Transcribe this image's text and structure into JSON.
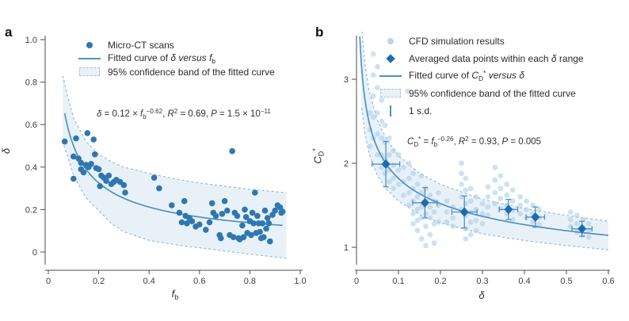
{
  "colors": {
    "point": "#2f77b0",
    "diamond": "#1b6cad",
    "line": "#4d92c3",
    "dashed": "#90b6d2",
    "band_fill": "#e9f1f8",
    "cfd_point": "#aecfe7",
    "error_bar": "#4d92c3",
    "axis": "#4d4d4d",
    "tick_text": "#3d3d3d",
    "text": "#333333",
    "background": "#ffffff"
  },
  "chart_data": [
    {
      "type": "scatter",
      "panel_label": "a",
      "xlabel_tokens": [
        {
          "t": "f",
          "s": "i"
        },
        {
          "t": "b",
          "s": "sub"
        }
      ],
      "ylabel_tokens": [
        {
          "t": "δ",
          "s": "i"
        }
      ],
      "xlim": [
        0,
        1.0
      ],
      "ylim": [
        0,
        1.0
      ],
      "grid": false,
      "legend_position": "top-inside",
      "xticks": [
        {
          "v": 0,
          "l": "0"
        },
        {
          "v": 0.2,
          "l": "0.2"
        },
        {
          "v": 0.4,
          "l": "0.4"
        },
        {
          "v": 0.6,
          "l": "0.6"
        },
        {
          "v": 0.8,
          "l": "0.8"
        },
        {
          "v": 1.0,
          "l": "1.0"
        }
      ],
      "yticks": [
        {
          "v": 0,
          "l": "0"
        },
        {
          "v": 0.2,
          "l": "0.2"
        },
        {
          "v": 0.4,
          "l": "0.4"
        },
        {
          "v": 0.6,
          "l": "0.6"
        },
        {
          "v": 0.8,
          "l": "0.8"
        },
        {
          "v": 1.0,
          "l": "1.0"
        }
      ],
      "legend": [
        {
          "marker": "dot",
          "tokens": [
            {
              "t": "Micro-CT scans"
            }
          ]
        },
        {
          "marker": "line",
          "tokens": [
            {
              "t": "Fitted curve of "
            },
            {
              "t": "δ",
              "s": "i"
            },
            {
              "t": " versus ",
              "s": "i"
            },
            {
              "t": "f",
              "s": "i"
            },
            {
              "t": "b",
              "s": "sub"
            }
          ]
        },
        {
          "marker": "band",
          "tokens": [
            {
              "t": "95% confidence band of the fitted curve"
            }
          ]
        }
      ],
      "equation_tokens": [
        {
          "t": "δ",
          "s": "i"
        },
        {
          "t": " = 0.12 × "
        },
        {
          "t": "f",
          "s": "i"
        },
        {
          "t": "b",
          "s": "sub"
        },
        {
          "t": "−0.62",
          "s": "sup"
        },
        {
          "t": ", "
        },
        {
          "t": "R",
          "s": "i"
        },
        {
          "t": "2",
          "s": "sup"
        },
        {
          "t": " = 0.69, "
        },
        {
          "t": "P",
          "s": "i"
        },
        {
          "t": " = 1.5 × 10"
        },
        {
          "t": "−11",
          "s": "sup"
        }
      ],
      "fit": {
        "coef": 0.12,
        "exponent": -0.62,
        "x_start": 0.065,
        "x_end": 0.93
      },
      "band": {
        "x": [
          0.057,
          0.08,
          0.1,
          0.15,
          0.2,
          0.25,
          0.3,
          0.4,
          0.5,
          0.6,
          0.7,
          0.8,
          0.945
        ],
        "upper": [
          0.83,
          0.72,
          0.63,
          0.52,
          0.46,
          0.425,
          0.4,
          0.37,
          0.345,
          0.325,
          0.31,
          0.295,
          0.28
        ],
        "lower": [
          0.52,
          0.44,
          0.36,
          0.255,
          0.195,
          0.135,
          0.095,
          0.055,
          0.035,
          0.02,
          0.005,
          -0.01,
          -0.03
        ]
      },
      "points": [
        [
          0.065,
          0.52
        ],
        [
          0.1,
          0.45
        ],
        [
          0.1,
          0.345
        ],
        [
          0.11,
          0.535
        ],
        [
          0.12,
          0.44
        ],
        [
          0.13,
          0.42
        ],
        [
          0.13,
          0.39
        ],
        [
          0.14,
          0.375
        ],
        [
          0.15,
          0.41
        ],
        [
          0.155,
          0.56
        ],
        [
          0.16,
          0.4
        ],
        [
          0.17,
          0.415
        ],
        [
          0.18,
          0.53
        ],
        [
          0.185,
          0.46
        ],
        [
          0.19,
          0.395
        ],
        [
          0.2,
          0.39
        ],
        [
          0.205,
          0.31
        ],
        [
          0.21,
          0.36
        ],
        [
          0.22,
          0.35
        ],
        [
          0.23,
          0.335
        ],
        [
          0.24,
          0.36
        ],
        [
          0.25,
          0.32
        ],
        [
          0.26,
          0.33
        ],
        [
          0.27,
          0.34
        ],
        [
          0.285,
          0.33
        ],
        [
          0.3,
          0.315
        ],
        [
          0.305,
          0.28
        ],
        [
          0.42,
          0.35
        ],
        [
          0.44,
          0.3
        ],
        [
          0.49,
          0.22
        ],
        [
          0.52,
          0.185
        ],
        [
          0.53,
          0.14
        ],
        [
          0.54,
          0.24
        ],
        [
          0.545,
          0.17
        ],
        [
          0.55,
          0.135
        ],
        [
          0.56,
          0.16
        ],
        [
          0.57,
          0.145
        ],
        [
          0.585,
          0.12
        ],
        [
          0.6,
          0.13
        ],
        [
          0.625,
          0.105
        ],
        [
          0.64,
          0.14
        ],
        [
          0.65,
          0.23
        ],
        [
          0.655,
          0.185
        ],
        [
          0.665,
          0.17
        ],
        [
          0.68,
          0.08
        ],
        [
          0.685,
          0.065
        ],
        [
          0.69,
          0.18
        ],
        [
          0.7,
          0.24
        ],
        [
          0.71,
          0.195
        ],
        [
          0.72,
          0.08
        ],
        [
          0.73,
          0.475
        ],
        [
          0.735,
          0.07
        ],
        [
          0.74,
          0.185
        ],
        [
          0.75,
          0.17
        ],
        [
          0.755,
          0.065
        ],
        [
          0.76,
          0.06
        ],
        [
          0.77,
          0.125
        ],
        [
          0.775,
          0.07
        ],
        [
          0.78,
          0.2
        ],
        [
          0.785,
          0.165
        ],
        [
          0.79,
          0.09
        ],
        [
          0.8,
          0.145
        ],
        [
          0.805,
          0.08
        ],
        [
          0.81,
          0.185
        ],
        [
          0.815,
          0.135
        ],
        [
          0.82,
          0.28
        ],
        [
          0.825,
          0.09
        ],
        [
          0.83,
          0.17
        ],
        [
          0.835,
          0.135
        ],
        [
          0.84,
          0.095
        ],
        [
          0.845,
          0.065
        ],
        [
          0.85,
          0.135
        ],
        [
          0.855,
          0.07
        ],
        [
          0.86,
          0.195
        ],
        [
          0.865,
          0.11
        ],
        [
          0.87,
          0.16
        ],
        [
          0.875,
          0.135
        ],
        [
          0.88,
          0.05
        ],
        [
          0.89,
          0.175
        ],
        [
          0.9,
          0.195
        ],
        [
          0.91,
          0.22
        ],
        [
          0.92,
          0.21
        ],
        [
          0.925,
          0.185
        ],
        [
          0.93,
          0.19
        ]
      ]
    },
    {
      "type": "scatter",
      "panel_label": "b",
      "xlabel_tokens": [
        {
          "t": "δ",
          "s": "i"
        }
      ],
      "ylabel_tokens": [
        {
          "t": "C",
          "s": "i"
        },
        {
          "t": "D",
          "s": "sub"
        },
        {
          "t": "*",
          "s": "sup"
        }
      ],
      "xlim": [
        0,
        0.6
      ],
      "ylim": [
        0.85,
        3.55
      ],
      "grid": false,
      "legend_position": "top-inside",
      "xticks": [
        {
          "v": 0,
          "l": "0"
        },
        {
          "v": 0.1,
          "l": "0.1"
        },
        {
          "v": 0.2,
          "l": "0.2"
        },
        {
          "v": 0.3,
          "l": "0.3"
        },
        {
          "v": 0.4,
          "l": "0.4"
        },
        {
          "v": 0.5,
          "l": "0.5"
        },
        {
          "v": 0.6,
          "l": "0.6"
        }
      ],
      "yticks": [
        {
          "v": 1,
          "l": "1"
        },
        {
          "v": 2,
          "l": "2"
        },
        {
          "v": 3,
          "l": "3"
        }
      ],
      "legend": [
        {
          "marker": "dot-light",
          "tokens": [
            {
              "t": "CFD simulation results"
            }
          ]
        },
        {
          "marker": "diamond",
          "tokens": [
            {
              "t": "Averaged data points within each "
            },
            {
              "t": "δ",
              "s": "i"
            },
            {
              "t": " range"
            }
          ]
        },
        {
          "marker": "line",
          "tokens": [
            {
              "t": "Fitted curve of "
            },
            {
              "t": "C",
              "s": "i"
            },
            {
              "t": "D",
              "s": "sub"
            },
            {
              "t": "*",
              "s": "sup"
            },
            {
              "t": " versus ",
              "s": "i"
            },
            {
              "t": "δ",
              "s": "i"
            }
          ]
        },
        {
          "marker": "band",
          "tokens": [
            {
              "t": "95% confidence band of the fitted curve"
            }
          ]
        },
        {
          "marker": "vbar",
          "tokens": [
            {
              "t": "1 s.d."
            }
          ]
        }
      ],
      "equation_tokens": [
        {
          "t": "C",
          "s": "i"
        },
        {
          "t": "D",
          "s": "sub"
        },
        {
          "t": "*",
          "s": "sup"
        },
        {
          "t": " = "
        },
        {
          "t": "f",
          "s": "i"
        },
        {
          "t": "b",
          "s": "sub"
        },
        {
          "t": "−0.26",
          "s": "sup"
        },
        {
          "t": ", "
        },
        {
          "t": "R",
          "s": "i"
        },
        {
          "t": "2",
          "s": "sup"
        },
        {
          "t": " = 0.93, "
        },
        {
          "t": "P",
          "s": "i"
        },
        {
          "t": " = 0.005"
        }
      ],
      "fit": {
        "coef": 1.0,
        "exponent": -0.26,
        "x_start": 0.008,
        "x_end": 0.6
      },
      "band": {
        "x": [
          0.012,
          0.02,
          0.03,
          0.05,
          0.07,
          0.1,
          0.15,
          0.2,
          0.3,
          0.4,
          0.5,
          0.6
        ],
        "upper": [
          3.63,
          3.18,
          2.86,
          2.51,
          2.3,
          2.09,
          1.88,
          1.75,
          1.57,
          1.46,
          1.38,
          1.31
        ],
        "lower": [
          2.68,
          2.35,
          2.12,
          1.85,
          1.7,
          1.55,
          1.39,
          1.29,
          1.16,
          1.08,
          1.02,
          0.97
        ]
      },
      "cfd_columns": [
        {
          "x": 0.032,
          "ys": [
            2.6,
            2.4,
            2.2
          ]
        },
        {
          "x": 0.04,
          "ys": [
            3.3,
            3.05,
            2.8,
            2.55,
            2.3
          ]
        },
        {
          "x": 0.05,
          "ys": [
            3.15,
            2.9,
            2.6,
            2.35,
            2.1
          ]
        },
        {
          "x": 0.06,
          "ys": [
            2.75,
            2.5,
            2.3,
            2.1,
            1.95
          ]
        },
        {
          "x": 0.068,
          "ys": [
            2.45,
            2.25,
            2.05,
            1.88
          ]
        },
        {
          "x": 0.078,
          "ys": [
            2.3,
            2.1,
            1.92,
            1.78
          ]
        },
        {
          "x": 0.088,
          "ys": [
            2.15,
            1.98,
            1.82,
            1.7
          ]
        },
        {
          "x": 0.1,
          "ys": [
            2.1,
            1.92,
            1.75
          ]
        },
        {
          "x": 0.112,
          "ys": [
            1.95,
            1.78,
            1.62
          ]
        },
        {
          "x": 0.122,
          "ys": [
            2.86
          ]
        },
        {
          "x": 0.125,
          "ys": [
            2.0,
            1.82,
            1.65,
            1.5
          ]
        },
        {
          "x": 0.135,
          "ys": [
            1.88,
            1.7,
            1.55,
            1.4,
            1.28
          ]
        },
        {
          "x": 0.145,
          "ys": [
            1.75,
            1.6,
            1.45,
            1.32,
            1.2
          ]
        },
        {
          "x": 0.155,
          "ys": [
            1.85,
            1.65,
            1.48,
            1.35,
            1.1
          ]
        },
        {
          "x": 0.165,
          "ys": [
            1.7,
            1.55,
            1.4,
            1.25,
            1.02
          ]
        },
        {
          "x": 0.175,
          "ys": [
            1.62,
            1.48,
            1.35,
            1.15
          ]
        },
        {
          "x": 0.185,
          "ys": [
            1.55,
            1.42,
            1.28,
            1.05
          ]
        },
        {
          "x": 0.195,
          "ys": [
            1.65,
            1.5,
            1.3
          ]
        },
        {
          "x": 0.215,
          "ys": [
            1.55,
            1.42,
            1.3
          ]
        },
        {
          "x": 0.23,
          "ys": [
            1.48,
            1.35,
            1.25
          ]
        },
        {
          "x": 0.25,
          "ys": [
            2.0,
            1.88,
            1.75,
            1.6,
            1.45
          ]
        },
        {
          "x": 0.26,
          "ys": [
            1.82,
            1.68,
            1.52,
            1.38,
            1.22,
            1.1
          ]
        },
        {
          "x": 0.272,
          "ys": [
            1.7,
            1.55,
            1.42,
            1.3,
            1.15
          ]
        },
        {
          "x": 0.285,
          "ys": [
            1.6,
            1.45,
            1.32,
            1.2
          ]
        },
        {
          "x": 0.3,
          "ys": [
            1.52,
            1.4,
            1.28
          ]
        },
        {
          "x": 0.313,
          "ys": [
            1.72,
            1.6,
            1.48,
            1.38
          ]
        },
        {
          "x": 0.33,
          "ys": [
            1.95,
            1.8,
            1.65,
            1.52
          ]
        },
        {
          "x": 0.343,
          "ys": [
            1.85,
            1.7,
            1.58,
            1.46
          ]
        },
        {
          "x": 0.358,
          "ys": [
            1.75,
            1.62,
            1.5,
            1.4
          ]
        },
        {
          "x": 0.372,
          "ys": [
            1.68,
            1.55,
            1.44,
            1.33
          ]
        },
        {
          "x": 0.39,
          "ys": [
            1.6,
            1.5,
            1.4
          ]
        },
        {
          "x": 0.405,
          "ys": [
            1.55,
            1.45,
            1.35
          ]
        },
        {
          "x": 0.42,
          "ys": [
            1.5,
            1.4,
            1.3
          ]
        },
        {
          "x": 0.435,
          "ys": [
            1.45,
            1.35,
            1.27
          ]
        },
        {
          "x": 0.51,
          "ys": [
            1.42,
            1.33,
            1.25
          ]
        },
        {
          "x": 0.525,
          "ys": [
            1.38,
            1.28,
            1.18
          ]
        },
        {
          "x": 0.54,
          "ys": [
            1.33,
            1.24,
            1.15
          ]
        },
        {
          "x": 0.553,
          "ys": [
            1.28,
            1.2,
            1.12
          ]
        }
      ],
      "avg_points": [
        {
          "x": 0.07,
          "y": 1.99,
          "yerr": 0.27,
          "xerr": 0.033
        },
        {
          "x": 0.163,
          "y": 1.53,
          "yerr": 0.18,
          "xerr": 0.029
        },
        {
          "x": 0.257,
          "y": 1.42,
          "yerr": 0.19,
          "xerr": 0.03
        },
        {
          "x": 0.362,
          "y": 1.45,
          "yerr": 0.12,
          "xerr": 0.022
        },
        {
          "x": 0.426,
          "y": 1.36,
          "yerr": 0.12,
          "xerr": 0.022
        },
        {
          "x": 0.537,
          "y": 1.22,
          "yerr": 0.09,
          "xerr": 0.024
        }
      ]
    }
  ]
}
